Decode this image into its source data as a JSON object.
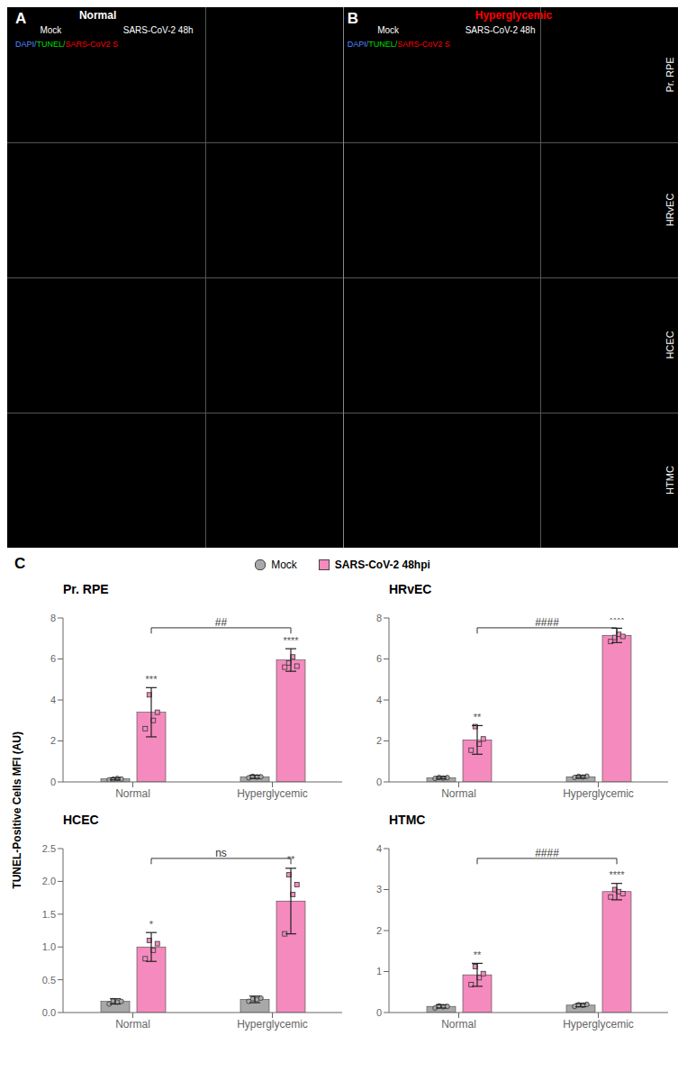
{
  "image_panel": {
    "panel_labels": [
      "A",
      "B"
    ],
    "groups": [
      {
        "text": "Normal"
      },
      {
        "text": "Hyperglycemic",
        "color": "red"
      }
    ],
    "columns": [
      "Mock",
      "SARS-CoV-2 48h",
      "Mock",
      "SARS-CoV-2 48h"
    ],
    "rows": [
      "Pr. RPE",
      "HRvEC",
      "HCEC",
      "HTMC"
    ],
    "channels": [
      {
        "text": "DAPI/",
        "color": "#5588ff"
      },
      {
        "text": "TUNEL/",
        "color": "#00dd00"
      },
      {
        "text": "SARS-CoV2 S",
        "color": "red"
      }
    ]
  },
  "panel_label": "C",
  "ylabel": "TUNEL-Positive Cells MFI (AU)",
  "legend": "top",
  "chart_data": [
    {
      "type": "bar",
      "title": "Pr. RPE",
      "categories": [
        "Normal",
        "Hyperglycemic"
      ],
      "ylim": [
        0,
        8
      ],
      "yticks": [
        0,
        2,
        4,
        6,
        8
      ],
      "series": [
        {
          "name": "Mock",
          "color": "#a8a8a8",
          "marker": "circle",
          "values": [
            0.15,
            0.25
          ],
          "errors": [
            0.05,
            0.08
          ],
          "points": [
            [
              0.1,
              0.13,
              0.17,
              0.14
            ],
            [
              0.2,
              0.27,
              0.24,
              0.25
            ]
          ]
        },
        {
          "name": "SARS-CoV-2 48hpi",
          "color": "#f48abd",
          "marker": "square",
          "values": [
            3.4,
            5.95
          ],
          "errors": [
            1.2,
            0.55
          ],
          "points": [
            [
              2.6,
              4.25,
              3.0,
              3.4
            ],
            [
              5.6,
              5.8,
              6.1,
              5.65
            ]
          ],
          "annotations": [
            "***",
            "****"
          ]
        }
      ],
      "annotations": [
        {
          "text": "##",
          "from": "Normal",
          "to": "Hyperglycemic",
          "series": "SARS-CoV-2 48hpi"
        }
      ]
    },
    {
      "type": "bar",
      "title": "HRvEC",
      "categories": [
        "Normal",
        "Hyperglycemic"
      ],
      "ylim": [
        0,
        8
      ],
      "yticks": [
        0,
        2,
        4,
        6,
        8
      ],
      "series": [
        {
          "name": "Mock",
          "color": "#a8a8a8",
          "marker": "circle",
          "values": [
            0.2,
            0.25
          ],
          "errors": [
            0.05,
            0.06
          ],
          "points": [
            [
              0.17,
              0.22,
              0.19,
              0.21
            ],
            [
              0.22,
              0.27,
              0.24,
              0.28
            ]
          ]
        },
        {
          "name": "SARS-CoV-2 48hpi",
          "color": "#f48abd",
          "marker": "square",
          "values": [
            2.05,
            7.15
          ],
          "errors": [
            0.7,
            0.35
          ],
          "points": [
            [
              1.55,
              2.7,
              1.85,
              2.1
            ],
            [
              6.85,
              7.05,
              7.2,
              7.1
            ]
          ],
          "annotations": [
            "**",
            "****"
          ]
        }
      ],
      "annotations": [
        {
          "text": "####",
          "from": "Normal",
          "to": "Hyperglycemic",
          "series": "SARS-CoV-2 48hpi"
        }
      ]
    },
    {
      "type": "bar",
      "title": "HCEC",
      "categories": [
        "Normal",
        "Hyperglycemic"
      ],
      "ylim": [
        0,
        2.5
      ],
      "yticks": [
        {
          "value": 0,
          "label": "0.0"
        },
        0.5,
        {
          "value": 1,
          "label": "1.0"
        },
        1.5,
        {
          "value": 2,
          "label": "2.0"
        },
        2.5
      ],
      "series": [
        {
          "name": "Mock",
          "color": "#a8a8a8",
          "marker": "circle",
          "values": [
            0.17,
            0.2
          ],
          "errors": [
            0.04,
            0.05
          ],
          "points": [
            [
              0.13,
              0.18,
              0.16,
              0.17
            ],
            [
              0.17,
              0.21,
              0.2,
              0.22
            ]
          ]
        },
        {
          "name": "SARS-CoV-2 48hpi",
          "color": "#f48abd",
          "marker": "square",
          "values": [
            1.0,
            1.7
          ],
          "errors": [
            0.22,
            0.5
          ],
          "points": [
            [
              0.82,
              1.1,
              0.95,
              1.05
            ],
            [
              1.2,
              2.1,
              1.8,
              1.95
            ]
          ],
          "annotations": [
            "*",
            "**"
          ]
        }
      ],
      "annotations": [
        {
          "text": "ns",
          "from": "Normal",
          "to": "Hyperglycemic",
          "series": "SARS-CoV-2 48hpi"
        }
      ]
    },
    {
      "type": "bar",
      "title": "HTMC",
      "categories": [
        "Normal",
        "Hyperglycemic"
      ],
      "ylim": [
        0,
        4
      ],
      "yticks": [
        0,
        1,
        2,
        3,
        4
      ],
      "series": [
        {
          "name": "Mock",
          "color": "#a8a8a8",
          "marker": "circle",
          "values": [
            0.15,
            0.18
          ],
          "errors": [
            0.04,
            0.04
          ],
          "points": [
            [
              0.11,
              0.16,
              0.14,
              0.15
            ],
            [
              0.15,
              0.19,
              0.18,
              0.2
            ]
          ]
        },
        {
          "name": "SARS-CoV-2 48hpi",
          "color": "#f48abd",
          "marker": "square",
          "values": [
            0.92,
            2.95
          ],
          "errors": [
            0.28,
            0.2
          ],
          "points": [
            [
              0.68,
              1.12,
              0.85,
              0.95
            ],
            [
              2.82,
              3.0,
              2.95,
              2.9
            ]
          ],
          "annotations": [
            "**",
            "****"
          ]
        }
      ],
      "annotations": [
        {
          "text": "####",
          "from": "Normal",
          "to": "Hyperglycemic",
          "series": "SARS-CoV-2 48hpi"
        }
      ]
    }
  ]
}
